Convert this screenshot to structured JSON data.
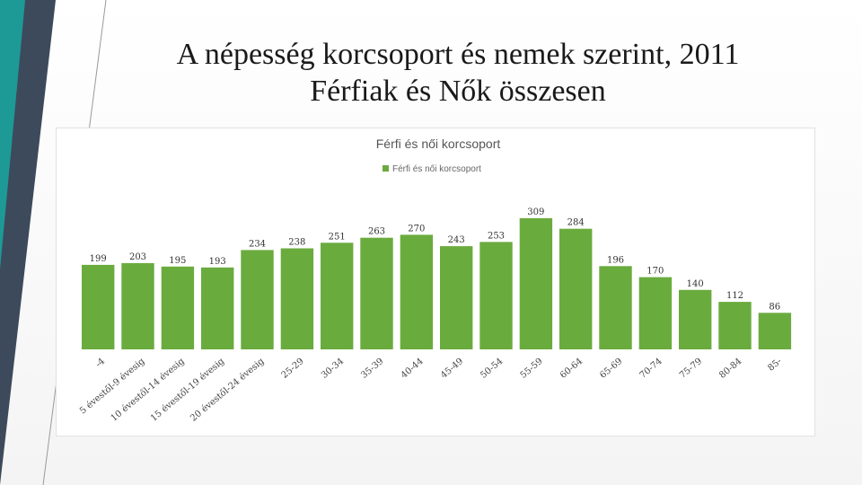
{
  "slide": {
    "title_line1": "A népesség korcsoport és nemek szerint, 2011",
    "title_line2": "Férfiak és Nők összesen"
  },
  "colors": {
    "bar": "#6aab3e",
    "accent_dark": "#3d4a5c",
    "accent_teal": "#17a8a0"
  },
  "chart_data": {
    "type": "bar",
    "title": "Férfi és női korcsoport",
    "legend": {
      "position": "top",
      "entries": [
        "Férfi és női korcsoport"
      ]
    },
    "categories": [
      "-4",
      "5 évestől-9 évesig",
      "10 évestől-14 évesig",
      "15 évestől-19 évesig",
      "20 évestől-24 évesig",
      "25-29",
      "30-34",
      "35-39",
      "40-44",
      "45-49",
      "50-54",
      "55-59",
      "60-64",
      "65-69",
      "70-74",
      "75-79",
      "80-84",
      "85-"
    ],
    "series": [
      {
        "name": "Férfi és női korcsoport",
        "values": [
          199,
          203,
          195,
          193,
          234,
          238,
          251,
          263,
          270,
          243,
          253,
          309,
          284,
          196,
          170,
          140,
          112,
          86
        ]
      }
    ],
    "ylim": [
      0,
      330
    ],
    "grid": false
  }
}
